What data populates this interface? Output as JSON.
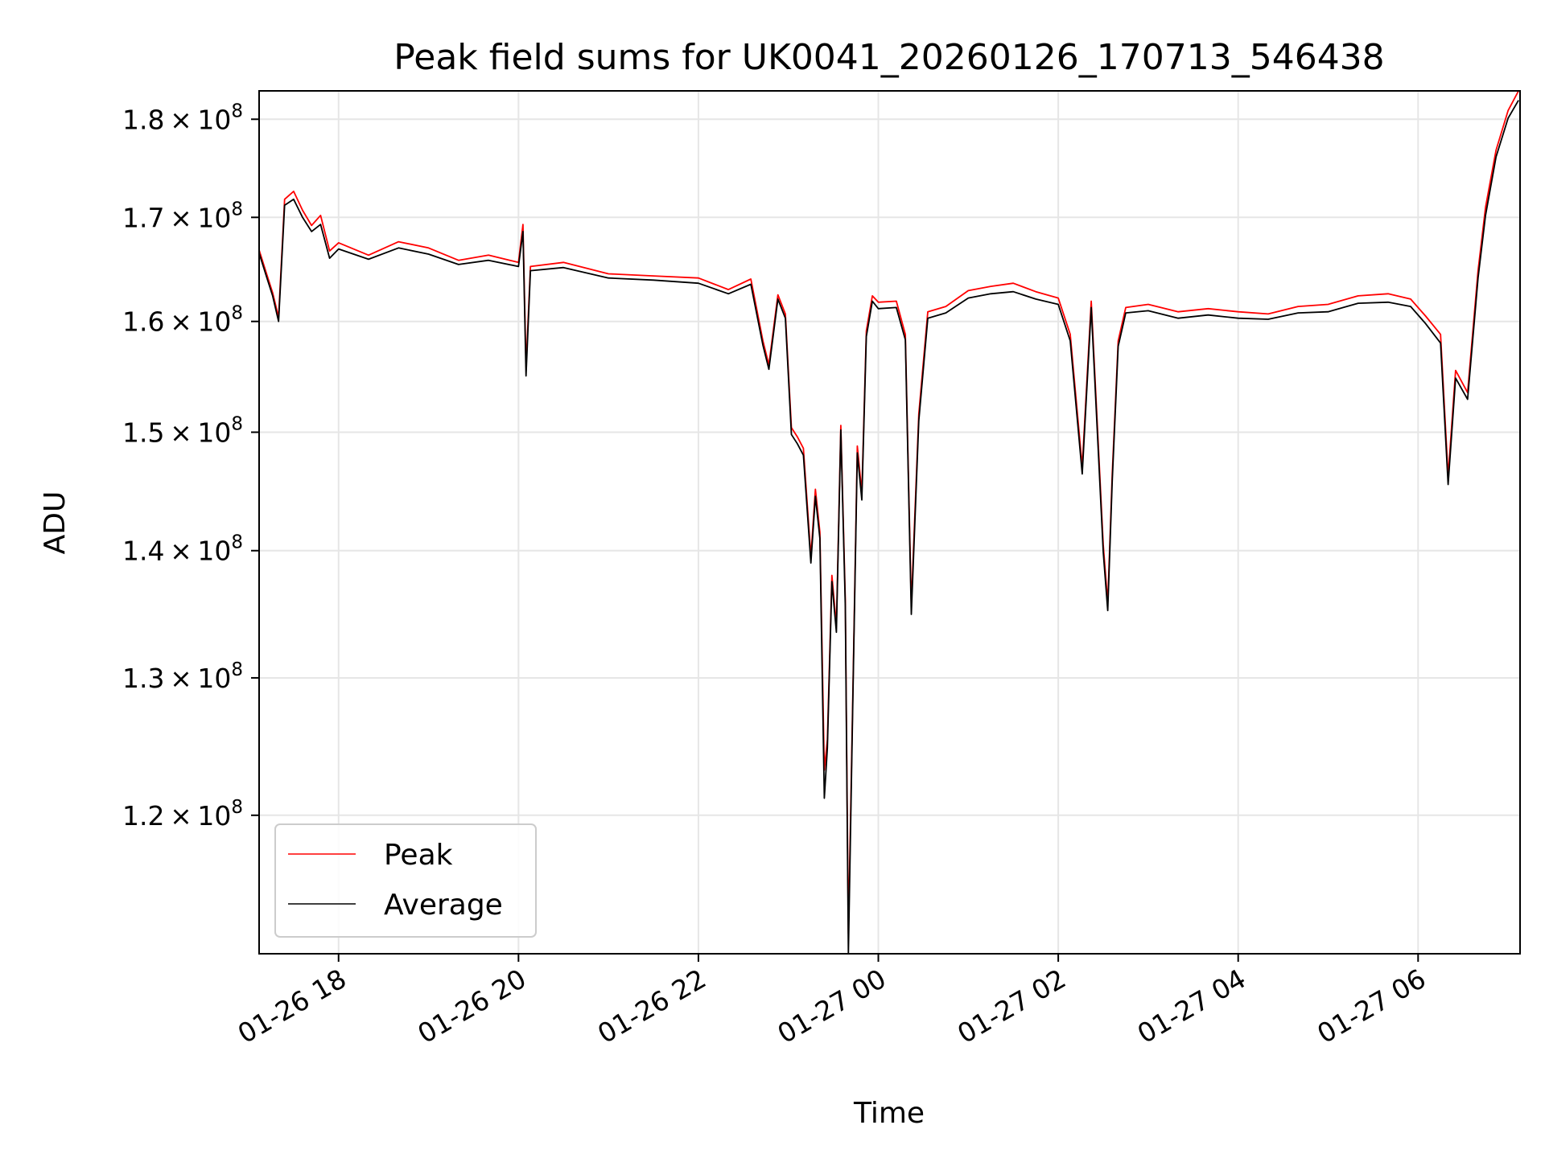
{
  "chart_data": {
    "type": "line",
    "title": "Peak field sums for UK0041_20260126_170713_546438",
    "xlabel": "Time",
    "ylabel": "ADU",
    "y_scale": "log",
    "grid": true,
    "legend_position": "lower-left",
    "xlim": [
      "2026-01-26 17:07",
      "2026-01-27 07:08"
    ],
    "ylim": [
      110700000,
      183000000
    ],
    "x_ticks": [
      {
        "value": "2026-01-26 18:00",
        "label": "01-26 18"
      },
      {
        "value": "2026-01-26 20:00",
        "label": "01-26 20"
      },
      {
        "value": "2026-01-26 22:00",
        "label": "01-26 22"
      },
      {
        "value": "2026-01-27 00:00",
        "label": "01-27 00"
      },
      {
        "value": "2026-01-27 02:00",
        "label": "01-27 02"
      },
      {
        "value": "2026-01-27 04:00",
        "label": "01-27 04"
      },
      {
        "value": "2026-01-27 06:00",
        "label": "01-27 06"
      }
    ],
    "y_ticks": [
      {
        "value": 120000000,
        "mantissa": "1.2",
        "base": "10",
        "exponent": "8"
      },
      {
        "value": 130000000,
        "mantissa": "1.3",
        "base": "10",
        "exponent": "8"
      },
      {
        "value": 140000000,
        "mantissa": "1.4",
        "base": "10",
        "exponent": "8"
      },
      {
        "value": 150000000,
        "mantissa": "1.5",
        "base": "10",
        "exponent": "8"
      },
      {
        "value": 160000000,
        "mantissa": "1.6",
        "base": "10",
        "exponent": "8"
      },
      {
        "value": 170000000,
        "mantissa": "1.7",
        "base": "10",
        "exponent": "8"
      },
      {
        "value": 180000000,
        "mantissa": "1.8",
        "base": "10",
        "exponent": "8"
      }
    ],
    "series": [
      {
        "name": "Peak",
        "color": "#ff0000",
        "points": [
          [
            "2026-01-26 17:07",
            166800000
          ],
          [
            "2026-01-26 17:12",
            164500000
          ],
          [
            "2026-01-26 17:16",
            162700000
          ],
          [
            "2026-01-26 17:20",
            160400000
          ],
          [
            "2026-01-26 17:24",
            171800000
          ],
          [
            "2026-01-26 17:30",
            172600000
          ],
          [
            "2026-01-26 17:36",
            170700000
          ],
          [
            "2026-01-26 17:42",
            169200000
          ],
          [
            "2026-01-26 17:48",
            170200000
          ],
          [
            "2026-01-26 17:54",
            166700000
          ],
          [
            "2026-01-26 18:00",
            167500000
          ],
          [
            "2026-01-26 18:20",
            166300000
          ],
          [
            "2026-01-26 18:40",
            167600000
          ],
          [
            "2026-01-26 19:00",
            167000000
          ],
          [
            "2026-01-26 19:20",
            165800000
          ],
          [
            "2026-01-26 19:40",
            166300000
          ],
          [
            "2026-01-26 20:00",
            165600000
          ],
          [
            "2026-01-26 20:03",
            169300000
          ],
          [
            "2026-01-26 20:05",
            155800000
          ],
          [
            "2026-01-26 20:08",
            165200000
          ],
          [
            "2026-01-26 20:30",
            165600000
          ],
          [
            "2026-01-26 21:00",
            164500000
          ],
          [
            "2026-01-26 21:30",
            164300000
          ],
          [
            "2026-01-26 22:00",
            164100000
          ],
          [
            "2026-01-26 22:20",
            163000000
          ],
          [
            "2026-01-26 22:35",
            164000000
          ],
          [
            "2026-01-26 22:43",
            158200000
          ],
          [
            "2026-01-26 22:47",
            156000000
          ],
          [
            "2026-01-26 22:53",
            162500000
          ],
          [
            "2026-01-26 22:58",
            160700000
          ],
          [
            "2026-01-26 23:02",
            150400000
          ],
          [
            "2026-01-26 23:06",
            149600000
          ],
          [
            "2026-01-26 23:10",
            148600000
          ],
          [
            "2026-01-26 23:15",
            139500000
          ],
          [
            "2026-01-26 23:18",
            145100000
          ],
          [
            "2026-01-26 23:21",
            141500000
          ],
          [
            "2026-01-26 23:24",
            123200000
          ],
          [
            "2026-01-26 23:26",
            125400000
          ],
          [
            "2026-01-26 23:29",
            138000000
          ],
          [
            "2026-01-26 23:32",
            134000000
          ],
          [
            "2026-01-26 23:35",
            150600000
          ],
          [
            "2026-01-26 23:38",
            136000000
          ],
          [
            "2026-01-26 23:40",
            112000000
          ],
          [
            "2026-01-26 23:43",
            129000000
          ],
          [
            "2026-01-26 23:46",
            148800000
          ],
          [
            "2026-01-26 23:49",
            144800000
          ],
          [
            "2026-01-26 23:52",
            159100000
          ],
          [
            "2026-01-26 23:56",
            162400000
          ],
          [
            "2026-01-27 00:00",
            161800000
          ],
          [
            "2026-01-27 00:12",
            161900000
          ],
          [
            "2026-01-27 00:18",
            158800000
          ],
          [
            "2026-01-27 00:22",
            135600000
          ],
          [
            "2026-01-27 00:27",
            151600000
          ],
          [
            "2026-01-27 00:33",
            160900000
          ],
          [
            "2026-01-27 00:45",
            161400000
          ],
          [
            "2026-01-27 01:00",
            162900000
          ],
          [
            "2026-01-27 01:15",
            163300000
          ],
          [
            "2026-01-27 01:30",
            163600000
          ],
          [
            "2026-01-27 01:45",
            162800000
          ],
          [
            "2026-01-27 02:00",
            162200000
          ],
          [
            "2026-01-27 02:08",
            158800000
          ],
          [
            "2026-01-27 02:16",
            147000000
          ],
          [
            "2026-01-27 02:22",
            161900000
          ],
          [
            "2026-01-27 02:30",
            140500000
          ],
          [
            "2026-01-27 02:33",
            135800000
          ],
          [
            "2026-01-27 02:36",
            146400000
          ],
          [
            "2026-01-27 02:40",
            158200000
          ],
          [
            "2026-01-27 02:45",
            161300000
          ],
          [
            "2026-01-27 03:00",
            161600000
          ],
          [
            "2026-01-27 03:20",
            160900000
          ],
          [
            "2026-01-27 03:40",
            161200000
          ],
          [
            "2026-01-27 04:00",
            160900000
          ],
          [
            "2026-01-27 04:20",
            160700000
          ],
          [
            "2026-01-27 04:40",
            161400000
          ],
          [
            "2026-01-27 05:00",
            161600000
          ],
          [
            "2026-01-27 05:20",
            162400000
          ],
          [
            "2026-01-27 05:40",
            162600000
          ],
          [
            "2026-01-27 05:55",
            162100000
          ],
          [
            "2026-01-27 06:05",
            160500000
          ],
          [
            "2026-01-27 06:15",
            158800000
          ],
          [
            "2026-01-27 06:20",
            146200000
          ],
          [
            "2026-01-27 06:25",
            155500000
          ],
          [
            "2026-01-27 06:33",
            153500000
          ],
          [
            "2026-01-27 06:40",
            164800000
          ],
          [
            "2026-01-27 06:45",
            171000000
          ],
          [
            "2026-01-27 06:52",
            176800000
          ],
          [
            "2026-01-27 07:00",
            180900000
          ],
          [
            "2026-01-27 07:07",
            183000000
          ]
        ]
      },
      {
        "name": "Average",
        "color": "#000000",
        "points": [
          [
            "2026-01-26 17:07",
            166500000
          ],
          [
            "2026-01-26 17:12",
            164200000
          ],
          [
            "2026-01-26 17:16",
            162400000
          ],
          [
            "2026-01-26 17:20",
            160000000
          ],
          [
            "2026-01-26 17:24",
            171200000
          ],
          [
            "2026-01-26 17:30",
            171800000
          ],
          [
            "2026-01-26 17:36",
            170000000
          ],
          [
            "2026-01-26 17:42",
            168600000
          ],
          [
            "2026-01-26 17:48",
            169300000
          ],
          [
            "2026-01-26 17:54",
            166000000
          ],
          [
            "2026-01-26 18:00",
            166900000
          ],
          [
            "2026-01-26 18:20",
            165900000
          ],
          [
            "2026-01-26 18:40",
            167000000
          ],
          [
            "2026-01-26 19:00",
            166400000
          ],
          [
            "2026-01-26 19:20",
            165400000
          ],
          [
            "2026-01-26 19:40",
            165800000
          ],
          [
            "2026-01-26 20:00",
            165200000
          ],
          [
            "2026-01-26 20:03",
            168600000
          ],
          [
            "2026-01-26 20:05",
            155000000
          ],
          [
            "2026-01-26 20:08",
            164800000
          ],
          [
            "2026-01-26 20:30",
            165100000
          ],
          [
            "2026-01-26 21:00",
            164100000
          ],
          [
            "2026-01-26 21:30",
            163900000
          ],
          [
            "2026-01-26 22:00",
            163600000
          ],
          [
            "2026-01-26 22:20",
            162600000
          ],
          [
            "2026-01-26 22:35",
            163500000
          ],
          [
            "2026-01-26 22:43",
            157800000
          ],
          [
            "2026-01-26 22:47",
            155600000
          ],
          [
            "2026-01-26 22:53",
            162100000
          ],
          [
            "2026-01-26 22:58",
            160300000
          ],
          [
            "2026-01-26 23:02",
            149800000
          ],
          [
            "2026-01-26 23:06",
            149000000
          ],
          [
            "2026-01-26 23:10",
            148000000
          ],
          [
            "2026-01-26 23:15",
            139000000
          ],
          [
            "2026-01-26 23:18",
            144500000
          ],
          [
            "2026-01-26 23:21",
            141000000
          ],
          [
            "2026-01-26 23:24",
            121200000
          ],
          [
            "2026-01-26 23:26",
            124800000
          ],
          [
            "2026-01-26 23:29",
            137500000
          ],
          [
            "2026-01-26 23:32",
            133500000
          ],
          [
            "2026-01-26 23:35",
            150200000
          ],
          [
            "2026-01-26 23:38",
            135500000
          ],
          [
            "2026-01-26 23:40",
            110700000
          ],
          [
            "2026-01-26 23:43",
            128500000
          ],
          [
            "2026-01-26 23:46",
            148200000
          ],
          [
            "2026-01-26 23:49",
            144200000
          ],
          [
            "2026-01-26 23:52",
            158600000
          ],
          [
            "2026-01-26 23:56",
            161900000
          ],
          [
            "2026-01-27 00:00",
            161200000
          ],
          [
            "2026-01-27 00:12",
            161300000
          ],
          [
            "2026-01-27 00:18",
            158300000
          ],
          [
            "2026-01-27 00:22",
            134900000
          ],
          [
            "2026-01-27 00:27",
            151000000
          ],
          [
            "2026-01-27 00:33",
            160300000
          ],
          [
            "2026-01-27 00:45",
            160800000
          ],
          [
            "2026-01-27 01:00",
            162200000
          ],
          [
            "2026-01-27 01:15",
            162600000
          ],
          [
            "2026-01-27 01:30",
            162800000
          ],
          [
            "2026-01-27 01:45",
            162100000
          ],
          [
            "2026-01-27 02:00",
            161600000
          ],
          [
            "2026-01-27 02:08",
            158200000
          ],
          [
            "2026-01-27 02:16",
            146400000
          ],
          [
            "2026-01-27 02:22",
            161300000
          ],
          [
            "2026-01-27 02:30",
            139900000
          ],
          [
            "2026-01-27 02:33",
            135200000
          ],
          [
            "2026-01-27 02:36",
            145800000
          ],
          [
            "2026-01-27 02:40",
            157700000
          ],
          [
            "2026-01-27 02:45",
            160800000
          ],
          [
            "2026-01-27 03:00",
            161000000
          ],
          [
            "2026-01-27 03:20",
            160300000
          ],
          [
            "2026-01-27 03:40",
            160600000
          ],
          [
            "2026-01-27 04:00",
            160300000
          ],
          [
            "2026-01-27 04:20",
            160200000
          ],
          [
            "2026-01-27 04:40",
            160800000
          ],
          [
            "2026-01-27 05:00",
            160900000
          ],
          [
            "2026-01-27 05:20",
            161700000
          ],
          [
            "2026-01-27 05:40",
            161800000
          ],
          [
            "2026-01-27 05:55",
            161400000
          ],
          [
            "2026-01-27 06:05",
            159800000
          ],
          [
            "2026-01-27 06:15",
            158000000
          ],
          [
            "2026-01-27 06:20",
            145500000
          ],
          [
            "2026-01-27 06:25",
            154800000
          ],
          [
            "2026-01-27 06:33",
            152900000
          ],
          [
            "2026-01-27 06:40",
            164100000
          ],
          [
            "2026-01-27 06:45",
            170200000
          ],
          [
            "2026-01-27 06:52",
            176100000
          ],
          [
            "2026-01-27 07:00",
            180100000
          ],
          [
            "2026-01-27 07:07",
            182000000
          ]
        ]
      }
    ]
  }
}
